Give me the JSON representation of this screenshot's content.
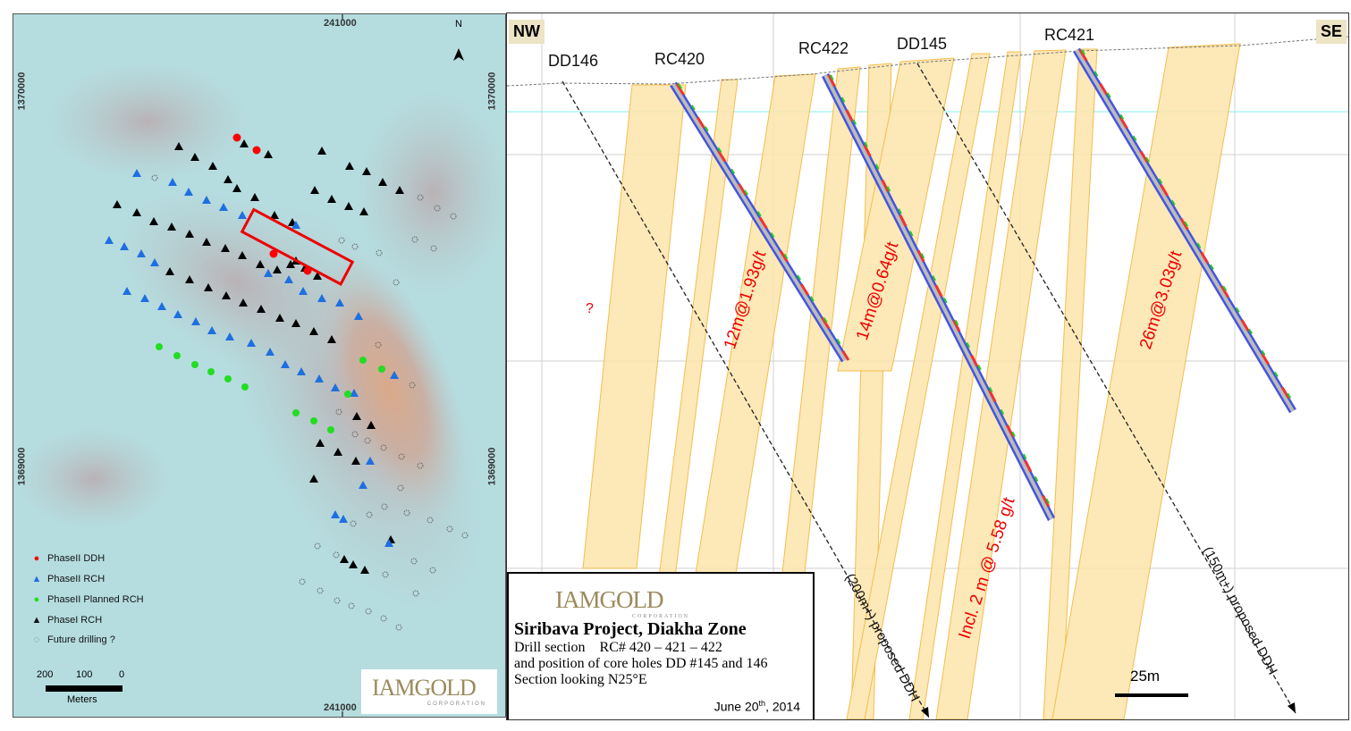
{
  "map": {
    "north_label": "N",
    "easting_top": "241000",
    "easting_bottom": "241000",
    "northing_upper_left": "1370000",
    "northing_upper_right": "1370000",
    "northing_lower_left": "1369000",
    "northing_lower_right": "1369000",
    "legend": [
      {
        "label": "PhaseII DDH",
        "icon": "red-circle",
        "color": "#ff0000"
      },
      {
        "label": "PhaseII RCH",
        "icon": "blue-triangle",
        "color": "#1e6fe0"
      },
      {
        "label": "PhaseII Planned RCH",
        "icon": "green-circle",
        "color": "#22dd22"
      },
      {
        "label": "PhaseI RCH",
        "icon": "black-triangle",
        "color": "#000000"
      },
      {
        "label": "Future drilling ?",
        "icon": "dotted-circle",
        "color": "#666666"
      }
    ],
    "scale": {
      "ticks": [
        "200",
        "100",
        "0"
      ],
      "unit": "Meters"
    },
    "logo": {
      "name": "IAMGOLD",
      "sub": "CORPORATION"
    }
  },
  "section": {
    "corner_left": "NW",
    "corner_right": "SE",
    "holes": [
      "DD146",
      "RC420",
      "RC422",
      "DD145",
      "RC421"
    ],
    "intercepts": [
      "12m@1.93g/t",
      "14m@0.64g/t",
      "26m@3.03g/t",
      "Incl. 2 m @ 5.58 g/t"
    ],
    "question": "?",
    "proposed": [
      "(200m+) proposed DDH",
      "(150m+) proposed DDH"
    ],
    "scale_label": "25m",
    "title_box": {
      "logo": "IAMGOLD",
      "logo_sub": "CORPORATION",
      "title": "Siribava Project, Diakha Zone",
      "line1": "Drill section    RC# 420 – 421 – 422",
      "line2": "and position of core holes DD #145 and 146",
      "line3": "Section looking N25°E",
      "date_prefix": "June 20",
      "date_sup": "th",
      "date_suffix": ", 2014"
    }
  }
}
